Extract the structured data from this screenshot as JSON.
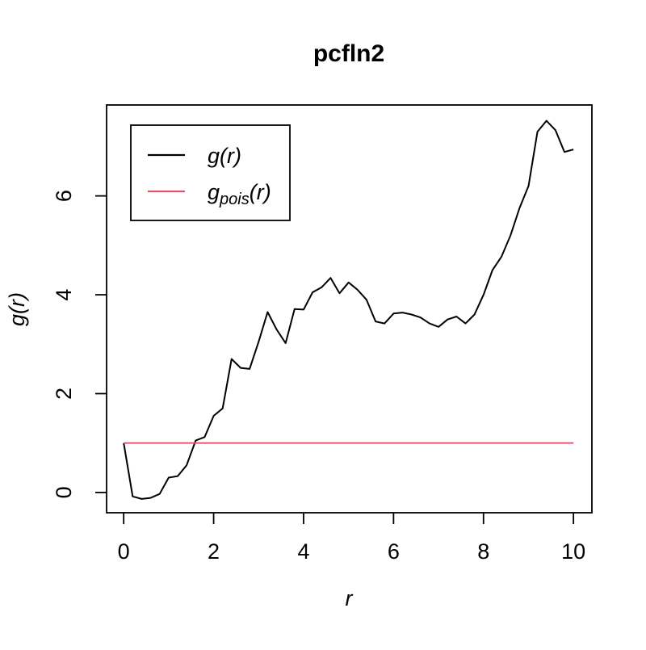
{
  "page": {
    "background": "#ffffff"
  },
  "legend": {
    "items": [
      {
        "base": "g",
        "sub": "",
        "rest": "(r)",
        "color": "#000000"
      },
      {
        "base": "g",
        "sub": "pois",
        "rest": "(r)",
        "color": "#DF536B"
      }
    ]
  },
  "chart_data": {
    "type": "line",
    "title": "pcfln2",
    "xlabel": "r",
    "ylabel": "g(r)",
    "xlim": [
      -0.38,
      10.41
    ],
    "ylim": [
      -0.41,
      7.84
    ],
    "xticks": [
      0,
      2,
      4,
      6,
      8,
      10
    ],
    "yticks": [
      0,
      2,
      4,
      6
    ],
    "grid": false,
    "legend_position": "top-left",
    "series": [
      {
        "name": "g(r)",
        "color": "#000000",
        "line_width": 2,
        "x": [
          0.0,
          0.2,
          0.4,
          0.6,
          0.8,
          1.0,
          1.2,
          1.4,
          1.6,
          1.8,
          2.0,
          2.2,
          2.4,
          2.6,
          2.8,
          3.0,
          3.2,
          3.4,
          3.6,
          3.8,
          4.0,
          4.2,
          4.4,
          4.6,
          4.8,
          5.0,
          5.2,
          5.4,
          5.6,
          5.8,
          6.0,
          6.2,
          6.4,
          6.6,
          6.8,
          7.0,
          7.2,
          7.4,
          7.6,
          7.8,
          8.0,
          8.2,
          8.4,
          8.6,
          8.8,
          9.0,
          9.2,
          9.4,
          9.6,
          9.8,
          10.0
        ],
        "y": [
          1.0,
          -0.08,
          -0.13,
          -0.11,
          -0.03,
          0.3,
          0.33,
          0.55,
          1.05,
          1.12,
          1.55,
          1.7,
          2.7,
          2.52,
          2.5,
          3.05,
          3.65,
          3.3,
          3.02,
          3.71,
          3.7,
          4.05,
          4.15,
          4.34,
          4.03,
          4.25,
          4.1,
          3.9,
          3.46,
          3.42,
          3.62,
          3.64,
          3.6,
          3.54,
          3.42,
          3.35,
          3.5,
          3.56,
          3.42,
          3.6,
          4.0,
          4.5,
          4.77,
          5.2,
          5.75,
          6.2,
          7.3,
          7.52,
          7.33,
          6.89,
          6.94
        ]
      },
      {
        "name": "g_pois(r)",
        "color": "#DF536B",
        "line_width": 1.8,
        "x": [
          0,
          10
        ],
        "y": [
          1,
          1
        ]
      }
    ]
  }
}
